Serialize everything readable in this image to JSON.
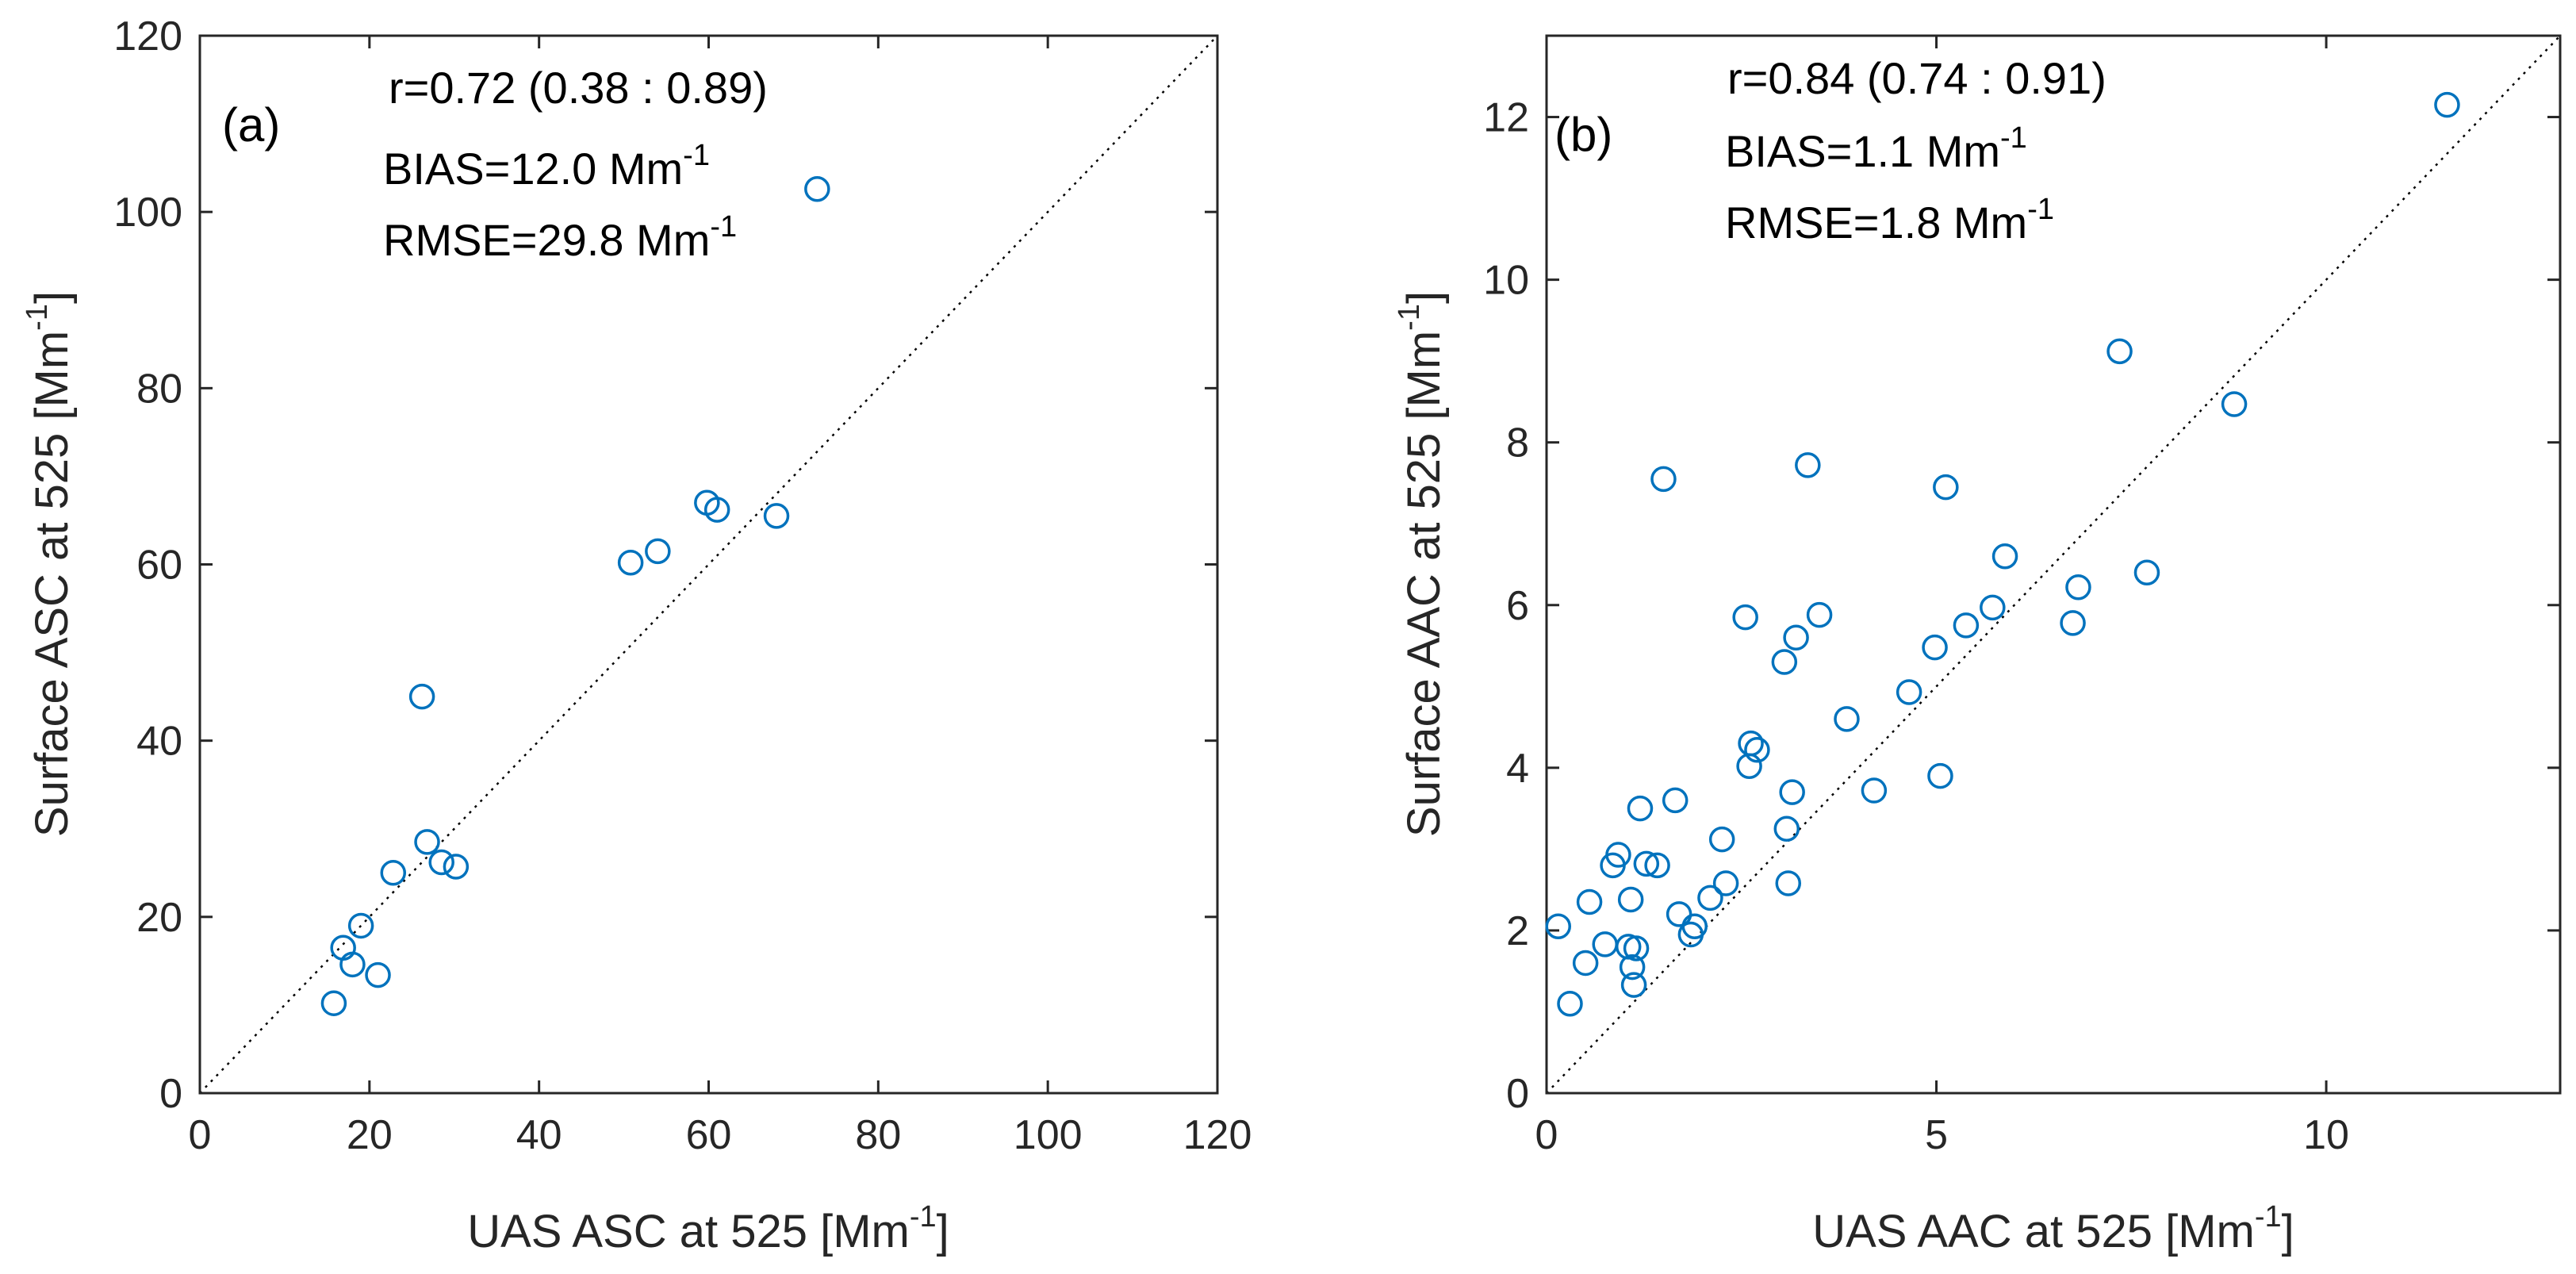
{
  "chart_data": [
    {
      "type": "scatter",
      "panel": "(a)",
      "xlabel": "UAS ASC at 525 [Mm",
      "ylabel": "Surface ASC at 525 [Mm",
      "unit_superscript": "-1",
      "unit_close": "]",
      "xlim": [
        0,
        120
      ],
      "ylim": [
        0,
        120
      ],
      "xticks": [
        0,
        20,
        40,
        60,
        80,
        100,
        120
      ],
      "yticks": [
        0,
        20,
        40,
        60,
        80,
        100,
        120
      ],
      "annotations": {
        "r": "r=0.72 (0.38 : 0.89)",
        "bias": "BIAS=12.0 Mm",
        "rmse": "RMSE=29.8 Mm",
        "superscript": "-1"
      },
      "reference_line": "1:1",
      "color": "#0072BD",
      "x": [
        15.8,
        16.9,
        18.0,
        19.0,
        21.0,
        22.8,
        26.2,
        26.8,
        28.5,
        30.2,
        50.8,
        54.0,
        59.8,
        61.0,
        68.0,
        72.8
      ],
      "y": [
        10.2,
        16.5,
        14.6,
        19.0,
        13.4,
        25.0,
        45.0,
        28.5,
        26.2,
        25.7,
        60.2,
        61.5,
        67.0,
        66.2,
        65.5,
        102.6
      ]
    },
    {
      "type": "scatter",
      "panel": "(b)",
      "xlabel": "UAS AAC at 525 [Mm",
      "ylabel": "Surface AAC at 525 [Mm",
      "unit_superscript": "-1",
      "unit_close": "]",
      "xlim": [
        0,
        13
      ],
      "ylim": [
        0,
        13
      ],
      "xticks": [
        0,
        5,
        10
      ],
      "yticks": [
        0,
        2,
        4,
        6,
        8,
        10,
        12
      ],
      "annotations": {
        "r": "r=0.84 (0.74 : 0.91)",
        "bias": "BIAS=1.1 Mm",
        "rmse": "RMSE=1.8 Mm",
        "superscript": "-1"
      },
      "reference_line": "1:1",
      "color": "#0072BD",
      "x": [
        0.15,
        0.3,
        0.5,
        0.55,
        0.75,
        0.85,
        0.92,
        1.05,
        1.08,
        1.1,
        1.12,
        1.15,
        1.2,
        1.28,
        1.42,
        1.5,
        1.65,
        1.7,
        1.85,
        1.9,
        2.1,
        2.25,
        2.3,
        2.55,
        2.6,
        2.62,
        2.7,
        3.05,
        3.08,
        3.1,
        3.15,
        3.2,
        3.35,
        3.5,
        3.85,
        4.2,
        4.65,
        4.98,
        5.05,
        5.12,
        5.38,
        5.72,
        5.88,
        6.75,
        6.82,
        7.35,
        7.7,
        8.82,
        11.55
      ],
      "y": [
        2.05,
        1.1,
        1.6,
        2.35,
        1.83,
        2.8,
        2.93,
        1.8,
        2.38,
        1.55,
        1.33,
        1.78,
        3.5,
        2.82,
        2.8,
        7.55,
        3.6,
        2.2,
        1.95,
        2.05,
        2.4,
        3.12,
        2.58,
        5.85,
        4.02,
        4.3,
        4.22,
        5.3,
        3.25,
        2.58,
        3.7,
        5.6,
        7.72,
        5.88,
        4.6,
        3.72,
        4.93,
        5.48,
        3.9,
        7.45,
        5.75,
        5.97,
        6.6,
        5.78,
        6.22,
        9.12,
        6.4,
        8.47,
        12.15
      ]
    }
  ]
}
